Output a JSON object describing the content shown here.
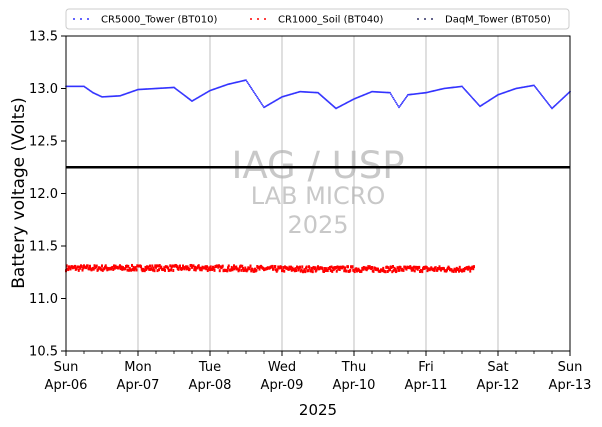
{
  "chart_data": {
    "type": "scatter",
    "xlabel": "2025",
    "ylabel": "Battery voltage (Volts)",
    "ylim": [
      10.5,
      13.5
    ],
    "xlim": [
      "2025-04-06",
      "2025-04-13"
    ],
    "x_ticks": [
      {
        "date": "2025-04-06",
        "day": "Sun",
        "label": "Apr-06"
      },
      {
        "date": "2025-04-07",
        "day": "Mon",
        "label": "Apr-07"
      },
      {
        "date": "2025-04-08",
        "day": "Tue",
        "label": "Apr-08"
      },
      {
        "date": "2025-04-09",
        "day": "Wed",
        "label": "Apr-09"
      },
      {
        "date": "2025-04-10",
        "day": "Thu",
        "label": "Apr-10"
      },
      {
        "date": "2025-04-11",
        "day": "Fri",
        "label": "Apr-11"
      },
      {
        "date": "2025-04-12",
        "day": "Sat",
        "label": "Apr-12"
      },
      {
        "date": "2025-04-13",
        "day": "Sun",
        "label": "Apr-13"
      }
    ],
    "y_ticks": [
      "10.5",
      "11.0",
      "11.5",
      "12.0",
      "12.5",
      "13.0",
      "13.5"
    ],
    "grid": "vertical",
    "legend_position": "top",
    "reference_line": {
      "y": 12.25,
      "color": "#000000"
    },
    "watermark": [
      "IAG / USP",
      "LAB MICRO",
      "2025"
    ],
    "series": [
      {
        "name": "CR5000_Tower (BT010)",
        "color": "#3333ff",
        "x": [
          "2025-04-06 00:00",
          "2025-04-06 06:00",
          "2025-04-06 09:00",
          "2025-04-06 12:00",
          "2025-04-06 18:00",
          "2025-04-07 00:00",
          "2025-04-07 06:00",
          "2025-04-07 12:00",
          "2025-04-07 18:00",
          "2025-04-08 00:00",
          "2025-04-08 06:00",
          "2025-04-08 12:00",
          "2025-04-08 15:00",
          "2025-04-08 18:00",
          "2025-04-09 00:00",
          "2025-04-09 06:00",
          "2025-04-09 12:00",
          "2025-04-09 18:00",
          "2025-04-10 00:00",
          "2025-04-10 06:00",
          "2025-04-10 12:00",
          "2025-04-10 15:00",
          "2025-04-10 18:00",
          "2025-04-11 00:00",
          "2025-04-11 06:00",
          "2025-04-11 12:00",
          "2025-04-11 18:00",
          "2025-04-12 00:00",
          "2025-04-12 06:00",
          "2025-04-12 12:00",
          "2025-04-12 18:00",
          "2025-04-13 00:00"
        ],
        "y": [
          13.02,
          13.02,
          12.96,
          12.92,
          12.93,
          12.99,
          13.0,
          13.01,
          12.88,
          12.98,
          13.04,
          13.08,
          12.95,
          12.82,
          12.92,
          12.97,
          12.96,
          12.81,
          12.9,
          12.97,
          12.96,
          12.82,
          12.94,
          12.96,
          13.0,
          13.02,
          12.83,
          12.94,
          13.0,
          13.03,
          12.81,
          12.97
        ]
      },
      {
        "name": "CR1000_Soil (BT040)",
        "color": "#ff0000",
        "x": [
          "2025-04-06 00:00",
          "2025-04-07 00:00",
          "2025-04-08 00:00",
          "2025-04-09 00:00",
          "2025-04-10 00:00",
          "2025-04-11 00:00",
          "2025-04-11 16:00"
        ],
        "y": [
          11.29,
          11.29,
          11.29,
          11.28,
          11.28,
          11.28,
          11.28
        ]
      },
      {
        "name": "DaqM_Tower (BT050)",
        "color": "#333366",
        "x": [],
        "y": []
      }
    ]
  }
}
